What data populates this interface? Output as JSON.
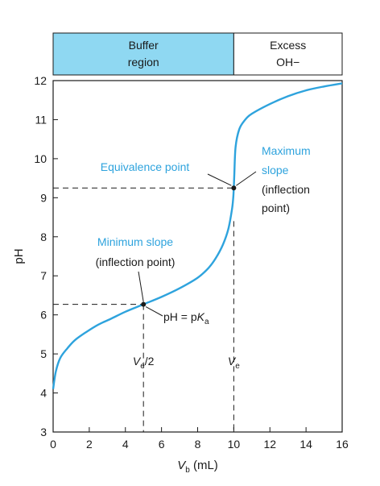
{
  "chart_data": {
    "type": "line",
    "title": "",
    "xlabel": {
      "var": "V",
      "sub": "b",
      "unit": " (mL)"
    },
    "ylabel": "pH",
    "xlim": [
      0,
      16
    ],
    "ylim": [
      3,
      12
    ],
    "xticks": [
      0,
      2,
      4,
      6,
      8,
      10,
      12,
      14,
      16
    ],
    "yticks": [
      3,
      4,
      5,
      6,
      7,
      8,
      9,
      10,
      11,
      12
    ],
    "grid": false,
    "series": [
      {
        "color": "#2ea3dd",
        "x": [
          0,
          0.15,
          0.4,
          0.8,
          1.2,
          1.8,
          2.5,
          3.2,
          4.0,
          5.0,
          6.0,
          7.0,
          8.0,
          8.6,
          9.0,
          9.4,
          9.7,
          9.9,
          9.97,
          10.0,
          10.03,
          10.1,
          10.3,
          10.6,
          11.0,
          12.0,
          13.0,
          14.0,
          15.0,
          16.0
        ],
        "y": [
          4.1,
          4.55,
          4.9,
          5.15,
          5.35,
          5.55,
          5.75,
          5.9,
          6.08,
          6.27,
          6.46,
          6.68,
          6.95,
          7.2,
          7.45,
          7.8,
          8.2,
          8.7,
          9.0,
          9.25,
          9.6,
          10.3,
          10.75,
          10.98,
          11.15,
          11.4,
          11.6,
          11.75,
          11.85,
          11.93
        ]
      }
    ],
    "regions": [
      {
        "label_lines": [
          "Buffer",
          "region"
        ],
        "x_range": [
          0,
          10
        ],
        "fill": "#8fd8f2"
      },
      {
        "label_lines": [
          "Excess",
          "OH−"
        ],
        "x_range": [
          10,
          16
        ],
        "fill": "#ffffff"
      }
    ],
    "annotations": {
      "equivalence_point": {
        "text": "Equivalence point",
        "x": 10,
        "y": 9.25
      },
      "maximum_slope": {
        "lines": [
          "Maximum",
          "slope"
        ],
        "paren_lines": [
          "(inflection",
          "point)"
        ]
      },
      "minimum_slope": {
        "lines": [
          "Minimum slope"
        ],
        "paren_lines": [
          "(inflection point)"
        ],
        "x": 5,
        "y": 6.27
      },
      "half_equivalence": {
        "var": "V",
        "sub": "e",
        "suffix": "/2",
        "x": 5
      },
      "equivalence_volume": {
        "var": "V",
        "sub": "e",
        "x": 10
      },
      "pka": {
        "prefix": "pH = p",
        "var": "K",
        "sub": "a"
      }
    }
  }
}
